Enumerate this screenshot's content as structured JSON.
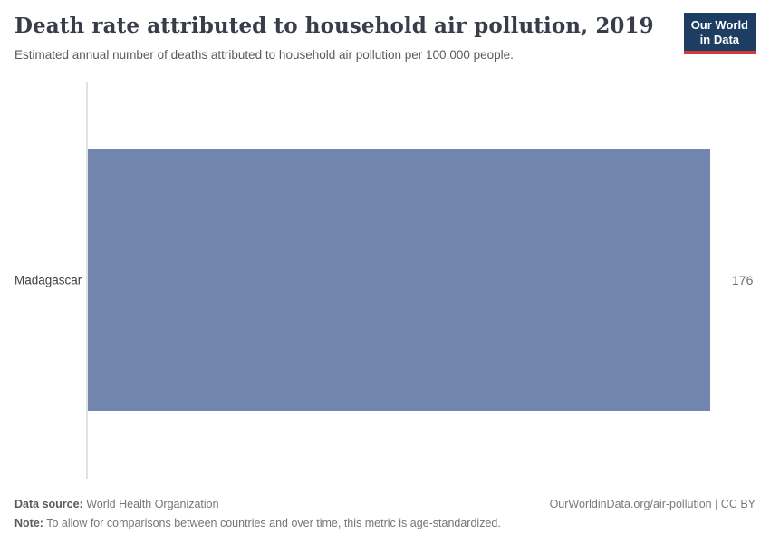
{
  "header": {
    "logo": {
      "line1": "Our World",
      "line2": "in Data"
    }
  },
  "chart_data": {
    "type": "bar",
    "orientation": "horizontal",
    "title": "Death rate attributed to household air pollution, 2019",
    "subtitle": "Estimated annual number of deaths attributed to household air pollution per 100,000 people.",
    "categories": [
      "Madagascar"
    ],
    "values": [
      176
    ],
    "value_labels": [
      "176"
    ],
    "xlim": [
      0,
      176
    ],
    "grid": false,
    "legend_position": "none",
    "bar_color": "#7185ad",
    "axis_line_color": "#e2e2e2"
  },
  "footer": {
    "data_source_label": "Data source:",
    "data_source_value": " World Health Organization",
    "note_label": "Note:",
    "note_value": " To allow for comparisons between countries and over time, this metric is age-standardized.",
    "link": "OurWorldinData.org/air-pollution | CC BY"
  }
}
